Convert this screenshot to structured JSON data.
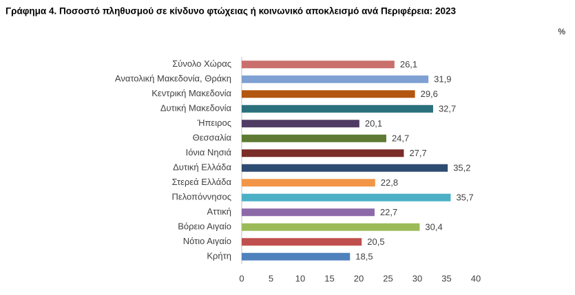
{
  "chart_data": {
    "type": "hbar",
    "title": "Γράφημα 4. Ποσοστό πληθυσμού σε κίνδυνο φτώχειας ή κοινωνικό αποκλεισμό  ανά Περιφέρεια: 2023",
    "unit_label": "%",
    "categories": [
      "Σύνολο Χώρας",
      "Ανατολική Μακεδονία, Θράκη",
      "Κεντρική Μακεδονία",
      "Δυτική Μακεδονία",
      "Ήπειρος",
      "Θεσσαλία",
      "Ιόνια Νησιά",
      "Δυτική Ελλάδα",
      "Στερεά Ελλάδα",
      "Πελοπόννησος",
      "Αττική",
      "Βόρειο Αιγαίο",
      "Νότιο Αιγαίο",
      "Κρήτη"
    ],
    "values": [
      26.1,
      31.9,
      29.6,
      32.7,
      20.1,
      24.7,
      27.7,
      35.2,
      22.8,
      35.7,
      22.7,
      30.4,
      20.5,
      18.5
    ],
    "value_labels": [
      "26,1",
      "31,9",
      "29,6",
      "32,7",
      "20,1",
      "24,7",
      "27,7",
      "35,2",
      "22,8",
      "35,7",
      "22,7",
      "30,4",
      "20,5",
      "18,5"
    ],
    "colors": [
      "#c96f6c",
      "#7ea0d2",
      "#b3560f",
      "#2a6f7c",
      "#4f3b64",
      "#5e7a33",
      "#7b2d27",
      "#2d4c72",
      "#f29547",
      "#4bb0c6",
      "#8c6aa9",
      "#9bbb59",
      "#c0504d",
      "#4f81bd"
    ],
    "xlim": [
      0,
      40
    ],
    "xticks": [
      0,
      5,
      10,
      15,
      20,
      25,
      30,
      35,
      40
    ],
    "grid": false
  }
}
